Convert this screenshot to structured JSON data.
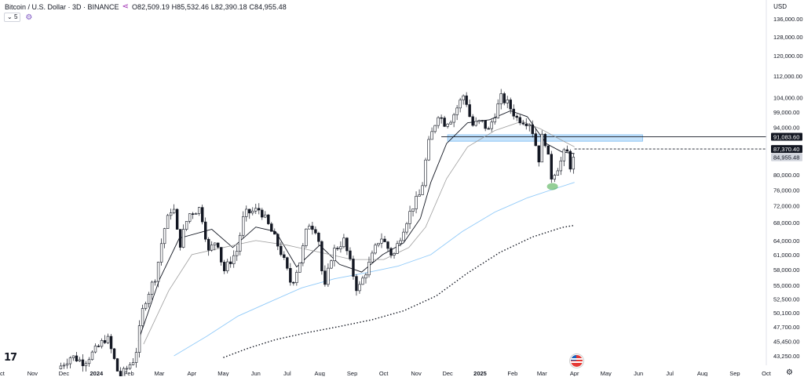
{
  "header": {
    "symbol_title": "Bitcoin / U.S. Dollar · 3D · BINANCE",
    "ohlc_text": "O82,509.19 H85,532.46 L82,390.18 C84,955.48",
    "indicator_count": "5",
    "currency": "USD"
  },
  "colors": {
    "up": "#ffffff",
    "down": "#131722",
    "candle_border": "#131722",
    "ema_fast": "#131722",
    "ema_slow": "#9e9e9e",
    "ma_blue": "#90caf9",
    "ma_dotted": "#131722",
    "zone_fill": "#bbdefb",
    "zone_edge": "#1e88e5",
    "dip_marker": "#4caf50"
  },
  "chart_data": {
    "type": "candlestick",
    "y_scale": "log",
    "y_ticks": [
      136000,
      128000,
      120000,
      112000,
      104000,
      99000,
      94000,
      80000,
      76000,
      72000,
      68000,
      64000,
      61000,
      58000,
      55000,
      52500,
      50100,
      47700,
      45450,
      43250
    ],
    "y_tick_labels": [
      "136,000.00",
      "128,000.00",
      "120,000.00",
      "112,000.00",
      "104,000.00",
      "99,000.00",
      "94,000.00",
      "80,000.00",
      "76,000.00",
      "72,000.00",
      "68,000.00",
      "64,000.00",
      "61,000.00",
      "58,000.00",
      "55,000.00",
      "52,500.00",
      "50,100.00",
      "47,700.00",
      "45,450.00",
      "43,250.00"
    ],
    "price_labels": [
      {
        "label": "91,083.60",
        "value": 91083.6,
        "style": "dark"
      },
      {
        "label": "87,370.40",
        "value": 87370.4,
        "style": "dark"
      },
      {
        "label": "84,955.48",
        "value": 84955.48,
        "style": "light"
      }
    ],
    "x_labels": [
      "Oct",
      "Nov",
      "Dec",
      "2024",
      "Feb",
      "Mar",
      "Apr",
      "May",
      "Jun",
      "Jul",
      "Aug",
      "Sep",
      "Oct",
      "Nov",
      "Dec",
      "2025",
      "Feb",
      "Mar",
      "Apr",
      "May",
      "Jun",
      "Jul",
      "Aug",
      "Sep",
      "Oct"
    ],
    "x_label_dates": [
      "2023-10-01",
      "2023-11-01",
      "2023-12-01",
      "2024-01-01",
      "2024-02-01",
      "2024-03-01",
      "2024-04-01",
      "2024-05-01",
      "2024-06-01",
      "2024-07-01",
      "2024-08-01",
      "2024-09-01",
      "2024-10-01",
      "2024-11-01",
      "2024-12-01",
      "2025-01-01",
      "2025-02-01",
      "2025-03-01",
      "2025-04-01",
      "2025-05-01",
      "2025-06-01",
      "2025-07-01",
      "2025-08-01",
      "2025-09-01",
      "2025-10-01"
    ],
    "x_range": [
      "2023-10-01",
      "2025-10-01"
    ],
    "bold_x_labels": [
      "2024",
      "2025"
    ],
    "price_path": [
      [
        "2023-11-28",
        41800
      ],
      [
        "2023-12-08",
        43200
      ],
      [
        "2023-12-20",
        42300
      ],
      [
        "2024-01-02",
        44400
      ],
      [
        "2024-01-11",
        46200
      ],
      [
        "2024-01-23",
        40100
      ],
      [
        "2024-02-07",
        43000
      ],
      [
        "2024-02-15",
        51500
      ],
      [
        "2024-02-27",
        57000
      ],
      [
        "2024-03-05",
        66000
      ],
      [
        "2024-03-14",
        72500
      ],
      [
        "2024-03-20",
        62500
      ],
      [
        "2024-03-29",
        70000
      ],
      [
        "2024-04-09",
        71500
      ],
      [
        "2024-04-17",
        61500
      ],
      [
        "2024-04-25",
        64500
      ],
      [
        "2024-05-01",
        57500
      ],
      [
        "2024-05-14",
        61800
      ],
      [
        "2024-05-21",
        70000
      ],
      [
        "2024-06-05",
        71200
      ],
      [
        "2024-06-18",
        65000
      ],
      [
        "2024-06-26",
        61000
      ],
      [
        "2024-07-05",
        55000
      ],
      [
        "2024-07-14",
        60200
      ],
      [
        "2024-07-21",
        68000
      ],
      [
        "2024-07-30",
        66200
      ],
      [
        "2024-08-05",
        53500
      ],
      [
        "2024-08-13",
        61500
      ],
      [
        "2024-08-24",
        64000
      ],
      [
        "2024-09-06",
        53800
      ],
      [
        "2024-09-16",
        58500
      ],
      [
        "2024-09-28",
        65000
      ],
      [
        "2024-10-10",
        60500
      ],
      [
        "2024-10-21",
        67500
      ],
      [
        "2024-10-29",
        72000
      ],
      [
        "2024-11-06",
        75500
      ],
      [
        "2024-11-12",
        88000
      ],
      [
        "2024-11-22",
        98500
      ],
      [
        "2024-11-28",
        95500
      ],
      [
        "2024-12-05",
        97000
      ],
      [
        "2024-12-17",
        105500
      ],
      [
        "2024-12-24",
        94500
      ],
      [
        "2025-01-02",
        96000
      ],
      [
        "2025-01-09",
        93000
      ],
      [
        "2025-01-21",
        104000
      ],
      [
        "2025-01-27",
        102000
      ],
      [
        "2025-02-05",
        97000
      ],
      [
        "2025-02-18",
        95500
      ],
      [
        "2025-02-26",
        84500
      ],
      [
        "2025-03-02",
        93000
      ],
      [
        "2025-03-10",
        79500
      ],
      [
        "2025-03-18",
        83000
      ],
      [
        "2025-03-24",
        87500
      ],
      [
        "2025-03-28",
        82500
      ],
      [
        "2025-04-01",
        84955
      ]
    ],
    "series": [
      {
        "name": "",
        "style": "solid",
        "points": [
          [
            "2024-02-10",
            45500
          ],
          [
            "2024-03-01",
            56000
          ],
          [
            "2024-03-20",
            64500
          ],
          [
            "2024-04-20",
            66500
          ],
          [
            "2024-05-10",
            62500
          ],
          [
            "2024-06-01",
            67000
          ],
          [
            "2024-06-20",
            66000
          ],
          [
            "2024-07-10",
            58500
          ],
          [
            "2024-08-01",
            63000
          ],
          [
            "2024-08-20",
            59000
          ],
          [
            "2024-09-10",
            57500
          ],
          [
            "2024-09-30",
            61000
          ],
          [
            "2024-10-20",
            63500
          ],
          [
            "2024-11-05",
            69000
          ],
          [
            "2024-11-15",
            78000
          ],
          [
            "2024-11-30",
            89000
          ],
          [
            "2024-12-20",
            95500
          ],
          [
            "2025-01-10",
            96500
          ],
          [
            "2025-01-30",
            99500
          ],
          [
            "2025-02-15",
            97500
          ],
          [
            "2025-03-05",
            89000
          ],
          [
            "2025-03-20",
            86500
          ],
          [
            "2025-04-01",
            86000
          ]
        ]
      },
      {
        "name": "",
        "style": "solid",
        "points": [
          [
            "2024-02-15",
            45000
          ],
          [
            "2024-03-10",
            54000
          ],
          [
            "2024-04-01",
            61000
          ],
          [
            "2024-05-01",
            62500
          ],
          [
            "2024-06-01",
            64000
          ],
          [
            "2024-07-01",
            63000
          ],
          [
            "2024-08-01",
            61500
          ],
          [
            "2024-09-01",
            60000
          ],
          [
            "2024-10-01",
            60000
          ],
          [
            "2024-10-25",
            62500
          ],
          [
            "2024-11-10",
            67000
          ],
          [
            "2024-11-30",
            79000
          ],
          [
            "2024-12-20",
            88000
          ],
          [
            "2025-01-15",
            93000
          ],
          [
            "2025-02-10",
            96000
          ],
          [
            "2025-02-28",
            93500
          ],
          [
            "2025-03-20",
            90000
          ],
          [
            "2025-04-01",
            88000
          ]
        ]
      },
      {
        "name": "",
        "style": "solid",
        "points": [
          [
            "2024-03-15",
            43250
          ],
          [
            "2024-04-15",
            46200
          ],
          [
            "2024-05-15",
            49500
          ],
          [
            "2024-06-15",
            52000
          ],
          [
            "2024-07-15",
            54500
          ],
          [
            "2024-08-15",
            56200
          ],
          [
            "2024-09-15",
            57400
          ],
          [
            "2024-10-15",
            58700
          ],
          [
            "2024-11-15",
            61000
          ],
          [
            "2024-12-15",
            66000
          ],
          [
            "2025-01-15",
            70500
          ],
          [
            "2025-02-15",
            74000
          ],
          [
            "2025-03-15",
            76500
          ],
          [
            "2025-04-01",
            78000
          ]
        ]
      },
      {
        "name": "",
        "style": "dotted",
        "points": [
          [
            "2024-05-01",
            43000
          ],
          [
            "2024-05-25",
            44400
          ],
          [
            "2024-06-20",
            45700
          ],
          [
            "2024-07-20",
            46800
          ],
          [
            "2024-08-20",
            47800
          ],
          [
            "2024-09-20",
            48900
          ],
          [
            "2024-10-20",
            50400
          ],
          [
            "2024-11-20",
            53000
          ],
          [
            "2024-12-20",
            57300
          ],
          [
            "2025-01-20",
            61500
          ],
          [
            "2025-02-20",
            64800
          ],
          [
            "2025-03-20",
            66900
          ],
          [
            "2025-04-01",
            67400
          ]
        ]
      }
    ],
    "zone": {
      "from": "2024-12-01",
      "to": "2025-06-05",
      "low": 89700,
      "high": 91700
    },
    "hlines": [
      {
        "from": "2024-11-25",
        "value": 91083.6,
        "style": "solid"
      },
      {
        "from": "2025-04-01",
        "value": 87370.4,
        "style": "dashed"
      }
    ],
    "dip_marker": {
      "date": "2025-03-11",
      "value": 76900
    }
  }
}
